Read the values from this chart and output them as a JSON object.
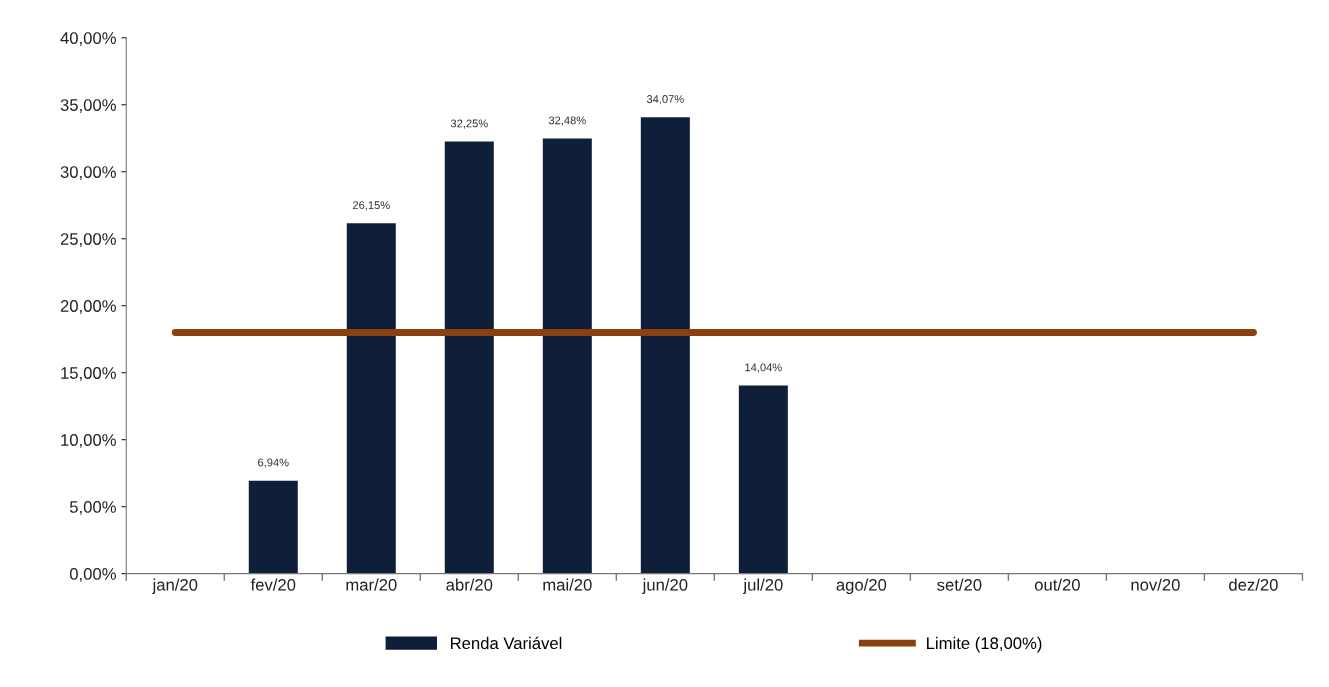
{
  "chart_data": {
    "type": "bar",
    "categories": [
      "jan/20",
      "fev/20",
      "mar/20",
      "abr/20",
      "mai/20",
      "jun/20",
      "jul/20",
      "ago/20",
      "set/20",
      "out/20",
      "nov/20",
      "dez/20"
    ],
    "series": [
      {
        "name": "Renda Variável",
        "color": "#0f1f3a",
        "values": [
          null,
          6.94,
          26.15,
          32.25,
          32.48,
          34.07,
          14.04,
          null,
          null,
          null,
          null,
          null
        ],
        "value_labels": [
          null,
          "6,94%",
          "26,15%",
          "32,25%",
          "32,48%",
          "34,07%",
          "14,04%",
          null,
          null,
          null,
          null,
          null
        ]
      },
      {
        "name": "Limite (18,00%)",
        "type": "line",
        "color": "#8b4010",
        "values": [
          18,
          18,
          18,
          18,
          18,
          18,
          18,
          18,
          18,
          18,
          18,
          18
        ]
      }
    ],
    "ylim": [
      0,
      40
    ],
    "yticks": [
      {
        "value": 0,
        "label": "0,00%"
      },
      {
        "value": 5,
        "label": "5,00%"
      },
      {
        "value": 10,
        "label": "10,00%"
      },
      {
        "value": 15,
        "label": "15,00%"
      },
      {
        "value": 20,
        "label": "20,00%"
      },
      {
        "value": 25,
        "label": "25,00%"
      },
      {
        "value": 30,
        "label": "30,00%"
      },
      {
        "value": 35,
        "label": "35,00%"
      },
      {
        "value": 40,
        "label": "40,00%"
      }
    ],
    "grid": false,
    "legend": "bottom",
    "marker": "none",
    "line_style": "solid"
  }
}
